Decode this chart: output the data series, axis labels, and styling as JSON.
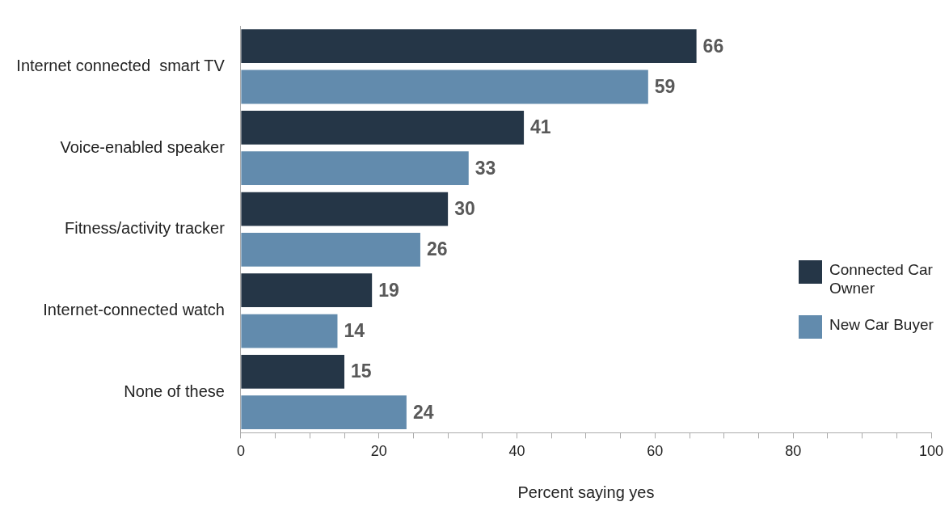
{
  "chart_data": {
    "type": "bar",
    "orientation": "horizontal",
    "xlabel": "Percent saying yes",
    "categories": [
      "Internet connected  smart TV",
      "Voice-enabled speaker",
      "Fitness/activity tracker",
      "Internet-connected watch",
      "None of these"
    ],
    "series": [
      {
        "name": "Connected Car Owner",
        "color": "#253647",
        "values": [
          66,
          41,
          30,
          19,
          15
        ]
      },
      {
        "name": "New Car Buyer",
        "color": "#628bad",
        "values": [
          59,
          33,
          26,
          14,
          24
        ]
      }
    ],
    "xlim": [
      0,
      100
    ],
    "xticks": [
      0,
      {
        "value": 5,
        "label": null
      },
      {
        "value": 10,
        "label": null
      },
      {
        "value": 15,
        "label": null
      },
      20,
      {
        "value": 25,
        "label": null
      },
      {
        "value": 30,
        "label": null
      },
      {
        "value": 35,
        "label": null
      },
      40,
      {
        "value": 45,
        "label": null
      },
      {
        "value": 50,
        "label": null
      },
      {
        "value": 55,
        "label": null
      },
      60,
      {
        "value": 65,
        "label": null
      },
      {
        "value": 70,
        "label": null
      },
      {
        "value": 75,
        "label": null
      },
      80,
      {
        "value": 85,
        "label": null
      },
      {
        "value": 90,
        "label": null
      },
      {
        "value": 95,
        "label": null
      },
      100
    ],
    "data_labels": true,
    "grid": false,
    "legend": "right"
  }
}
